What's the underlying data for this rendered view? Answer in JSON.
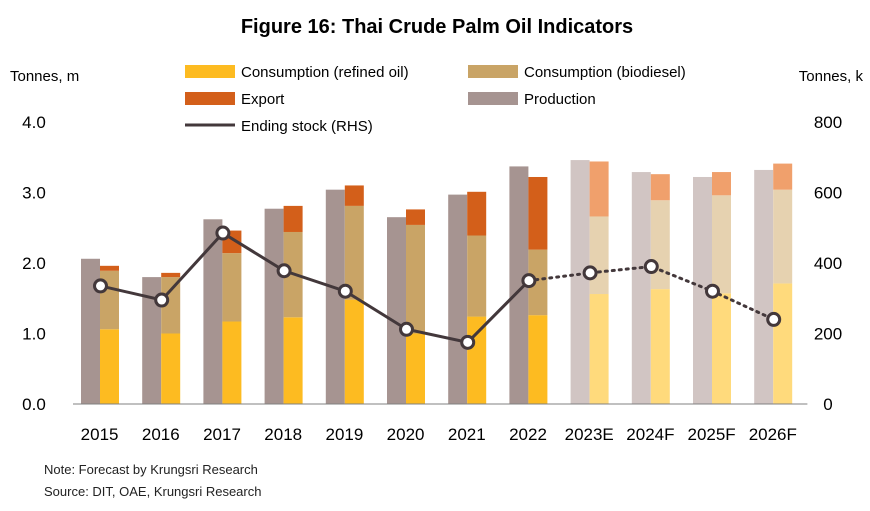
{
  "chart_data": {
    "type": "bar",
    "title": "Figure 16: Thai Crude Palm Oil Indicators",
    "ylabel_left": "Tonnes, m",
    "ylabel_right": "Tonnes, k",
    "ylim_left": [
      0,
      4
    ],
    "ylim_right": [
      0,
      800
    ],
    "yticks_left": [
      "0.0",
      "1.0",
      "2.0",
      "3.0",
      "4.0"
    ],
    "yticks_right": [
      "0",
      "200",
      "400",
      "600",
      "800"
    ],
    "categories": [
      "2015",
      "2016",
      "2017",
      "2018",
      "2019",
      "2020",
      "2021",
      "2022",
      "2023E",
      "2024F",
      "2025F",
      "2026F"
    ],
    "forecast_from_index": 8,
    "series": [
      {
        "name": "Production",
        "axis": "left",
        "kind": "bar",
        "values": [
          2.06,
          1.8,
          2.62,
          2.77,
          3.04,
          2.65,
          2.97,
          3.37,
          3.46,
          3.29,
          3.22,
          3.32
        ]
      },
      {
        "name": "Consumption (refined oil)",
        "axis": "left",
        "kind": "stacked-bar",
        "values": [
          1.06,
          1.0,
          1.17,
          1.23,
          1.48,
          1.0,
          1.24,
          1.26,
          1.56,
          1.63,
          1.57,
          1.71
        ]
      },
      {
        "name": "Consumption (biodiesel)",
        "axis": "left",
        "kind": "stacked-bar",
        "values": [
          0.83,
          0.8,
          0.97,
          1.21,
          1.33,
          1.54,
          1.15,
          0.93,
          1.1,
          1.26,
          1.39,
          1.33
        ]
      },
      {
        "name": "Export",
        "axis": "left",
        "kind": "stacked-bar",
        "values": [
          0.07,
          0.06,
          0.32,
          0.37,
          0.29,
          0.22,
          0.62,
          1.03,
          0.78,
          0.37,
          0.33,
          0.37
        ]
      },
      {
        "name": "Ending stock (RHS)",
        "axis": "right",
        "kind": "line",
        "values": [
          335,
          295,
          485,
          378,
          320,
          212,
          175,
          350,
          372,
          390,
          320,
          240
        ]
      }
    ],
    "legend": [
      {
        "label": "Consumption (refined oil)",
        "key": "Consumption (refined oil)"
      },
      {
        "label": "Consumption (biodiesel)",
        "key": "Consumption (biodiesel)"
      },
      {
        "label": "Export",
        "key": "Export"
      },
      {
        "label": "Production",
        "key": "Production"
      },
      {
        "label": "Ending stock (RHS)",
        "key": "Ending stock (RHS)"
      }
    ]
  },
  "colors": {
    "Production": "#a69491",
    "Production_forecast": "#d1c5c3",
    "Consumption (refined oil)": "#fdbb21",
    "Consumption (refined oil)_forecast": "#ffda7c",
    "Consumption (biodiesel)": "#c9a466",
    "Consumption (biodiesel)_forecast": "#e6d2b0",
    "Export": "#d35f1a",
    "Export_forecast": "#f0a06c",
    "Ending stock (RHS)": "#43383b",
    "axis": "#808080"
  },
  "notes": {
    "note": "Note: Forecast by Krungsri Research",
    "source": "Source: DIT, OAE, Krungsri Research"
  }
}
